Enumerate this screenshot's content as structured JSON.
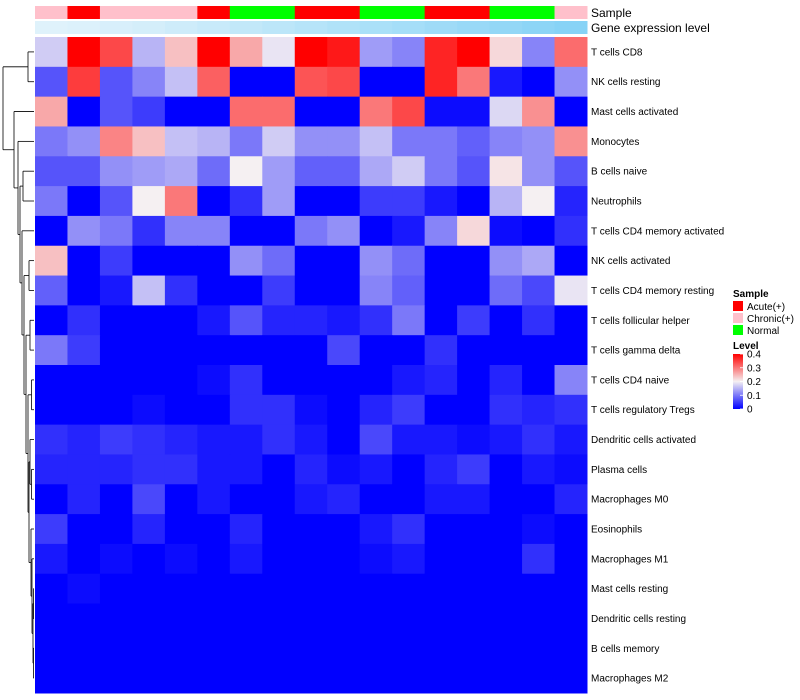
{
  "chart_data": {
    "type": "heatmap",
    "annotation_rows": [
      "Sample",
      "Gene expression level"
    ],
    "row_labels": [
      "T cells CD8",
      "NK cells resting",
      "Mast cells activated",
      "Monocytes",
      "B cells naive",
      "Neutrophils",
      "T cells CD4 memory activated",
      "NK cells activated",
      "T cells CD4 memory resting",
      "T cells follicular helper",
      "T cells gamma delta",
      "T cells CD4 naive",
      "T cells regulatory  Tregs",
      "Dendritic cells activated",
      "Plasma cells",
      "Macrophages M0",
      "Eosinophils",
      "Macrophages M1",
      "Mast cells resting",
      "Dendritic cells resting",
      "B cells memory",
      "Macrophages M2"
    ],
    "sample_groups": [
      "Chronic(+)",
      "Acute(+)",
      "Chronic(+)",
      "Chronic(+)",
      "Chronic(+)",
      "Acute(+)",
      "Normal",
      "Normal",
      "Acute(+)",
      "Acute(+)",
      "Normal",
      "Normal",
      "Acute(+)",
      "Acute(+)",
      "Normal",
      "Normal",
      "Chronic(+)"
    ],
    "gene_expression_level": [
      0.1,
      0.12,
      0.15,
      0.18,
      0.22,
      0.26,
      0.3,
      0.34,
      0.38,
      0.42,
      0.46,
      0.5,
      0.54,
      0.58,
      0.62,
      0.66,
      0.7
    ],
    "values": [
      [
        0.17,
        0.4,
        0.34,
        0.15,
        0.24,
        0.4,
        0.26,
        0.19,
        0.4,
        0.38,
        0.13,
        0.11,
        0.37,
        0.4,
        0.22,
        0.11,
        0.31
      ],
      [
        0.07,
        0.35,
        0.07,
        0.11,
        0.16,
        0.32,
        0.0,
        0.0,
        0.33,
        0.34,
        0.0,
        0.0,
        0.37,
        0.3,
        0.02,
        0.0,
        0.12
      ],
      [
        0.26,
        0.0,
        0.07,
        0.05,
        0.0,
        0.0,
        0.31,
        0.31,
        0.0,
        0.0,
        0.3,
        0.34,
        0.01,
        0.01,
        0.18,
        0.28,
        0.0
      ],
      [
        0.1,
        0.12,
        0.29,
        0.24,
        0.16,
        0.15,
        0.1,
        0.17,
        0.12,
        0.12,
        0.16,
        0.1,
        0.1,
        0.08,
        0.11,
        0.12,
        0.28
      ],
      [
        0.07,
        0.07,
        0.12,
        0.13,
        0.14,
        0.09,
        0.2,
        0.13,
        0.08,
        0.08,
        0.14,
        0.17,
        0.1,
        0.07,
        0.21,
        0.12,
        0.07
      ],
      [
        0.1,
        0.0,
        0.07,
        0.2,
        0.3,
        0.0,
        0.04,
        0.13,
        0.0,
        0.0,
        0.05,
        0.05,
        0.02,
        0.0,
        0.15,
        0.2,
        0.03
      ],
      [
        0.0,
        0.12,
        0.1,
        0.04,
        0.11,
        0.11,
        0.0,
        0.0,
        0.1,
        0.12,
        0.0,
        0.02,
        0.11,
        0.22,
        0.01,
        0.0,
        0.04
      ],
      [
        0.24,
        0.0,
        0.05,
        0.0,
        0.0,
        0.0,
        0.12,
        0.09,
        0.0,
        0.0,
        0.12,
        0.09,
        0.0,
        0.0,
        0.12,
        0.14,
        0.0
      ],
      [
        0.08,
        0.0,
        0.02,
        0.16,
        0.04,
        0.0,
        0.0,
        0.05,
        0.0,
        0.0,
        0.11,
        0.08,
        0.0,
        0.0,
        0.09,
        0.06,
        0.19
      ],
      [
        0.0,
        0.04,
        0.0,
        0.0,
        0.0,
        0.02,
        0.07,
        0.03,
        0.03,
        0.02,
        0.04,
        0.1,
        0.0,
        0.05,
        0.0,
        0.04,
        0.0
      ],
      [
        0.1,
        0.05,
        0.0,
        0.0,
        0.0,
        0.0,
        0.0,
        0.0,
        0.0,
        0.06,
        0.0,
        0.0,
        0.04,
        0.0,
        0.0,
        0.0,
        0.0
      ],
      [
        0.0,
        0.0,
        0.0,
        0.0,
        0.0,
        0.01,
        0.04,
        0.0,
        0.0,
        0.0,
        0.0,
        0.02,
        0.03,
        0.0,
        0.03,
        0.0,
        0.11
      ],
      [
        0.0,
        0.0,
        0.0,
        0.01,
        0.0,
        0.0,
        0.04,
        0.04,
        0.01,
        0.0,
        0.03,
        0.05,
        0.0,
        0.0,
        0.04,
        0.03,
        0.04
      ],
      [
        0.04,
        0.03,
        0.05,
        0.04,
        0.03,
        0.02,
        0.02,
        0.04,
        0.02,
        0.0,
        0.06,
        0.02,
        0.02,
        0.01,
        0.02,
        0.04,
        0.02
      ],
      [
        0.03,
        0.03,
        0.03,
        0.04,
        0.04,
        0.02,
        0.02,
        0.0,
        0.03,
        0.01,
        0.02,
        0.0,
        0.03,
        0.05,
        0.0,
        0.02,
        0.01
      ],
      [
        0.0,
        0.03,
        0.0,
        0.06,
        0.0,
        0.02,
        0.0,
        0.0,
        0.02,
        0.03,
        0.0,
        0.0,
        0.02,
        0.02,
        0.0,
        0.0,
        0.03
      ],
      [
        0.05,
        0.0,
        0.0,
        0.03,
        0.0,
        0.0,
        0.03,
        0.0,
        0.0,
        0.0,
        0.02,
        0.04,
        0.0,
        0.0,
        0.0,
        0.01,
        0.0
      ],
      [
        0.02,
        0.0,
        0.01,
        0.0,
        0.01,
        0.0,
        0.02,
        0.0,
        0.0,
        0.0,
        0.01,
        0.02,
        0.0,
        0.0,
        0.0,
        0.04,
        0.0
      ],
      [
        0.0,
        0.01,
        0.0,
        0.0,
        0.0,
        0.0,
        0.0,
        0.0,
        0.0,
        0.0,
        0.0,
        0.0,
        0.0,
        0.0,
        0.0,
        0.0,
        0.0
      ],
      [
        0.0,
        0.0,
        0.0,
        0.0,
        0.0,
        0.0,
        0.0,
        0.0,
        0.0,
        0.0,
        0.0,
        0.0,
        0.0,
        0.0,
        0.0,
        0.0,
        0.0
      ],
      [
        0.0,
        0.0,
        0.0,
        0.0,
        0.0,
        0.0,
        0.0,
        0.0,
        0.0,
        0.0,
        0.0,
        0.0,
        0.0,
        0.0,
        0.0,
        0.0,
        0.0
      ],
      [
        0.0,
        0.0,
        0.0,
        0.0,
        0.0,
        0.0,
        0.0,
        0.0,
        0.0,
        0.0,
        0.0,
        0.0,
        0.0,
        0.0,
        0.0,
        0.0,
        0.0
      ]
    ],
    "color_scale": {
      "min": 0,
      "mid": 0.2,
      "max": 0.4,
      "low_color": "#0000ff",
      "mid_color": "#f5f0f2",
      "high_color": "#ff0000"
    },
    "legend": {
      "sample": {
        "title": "Sample",
        "entries": [
          {
            "label": "Acute(+)",
            "color": "#ff0000"
          },
          {
            "label": "Chronic(+)",
            "color": "#ffc0cb"
          },
          {
            "label": "Normal",
            "color": "#00ff00"
          }
        ]
      },
      "level": {
        "title": "Level",
        "ticks": [
          "0.4",
          "0.3",
          "0.2",
          "0.1",
          "0"
        ]
      }
    },
    "expression_colors": {
      "low": "#eef7fc",
      "high": "#5bc4f3"
    }
  }
}
